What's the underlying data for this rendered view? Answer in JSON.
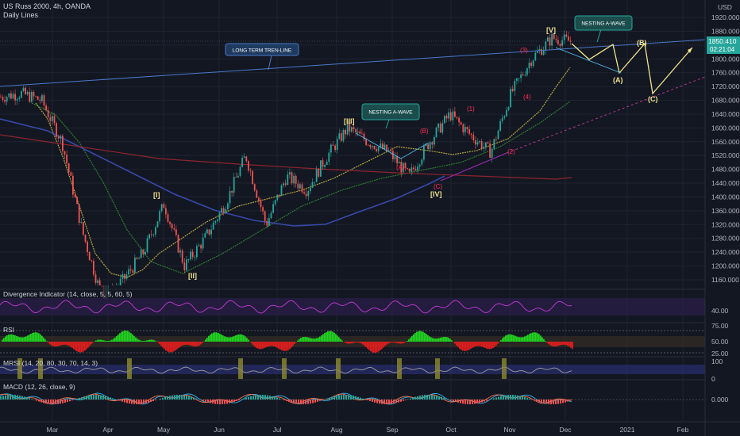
{
  "header": {
    "symbol_line": "US Russ 2000, 4h, OANDA",
    "study_line": "Daily Lines"
  },
  "price_axis": {
    "currency": "USD",
    "ticks": [
      "1920.000",
      "1880.000",
      "1840.000",
      "1800.000",
      "1760.000",
      "1720.000",
      "1680.000",
      "1640.000",
      "1600.000",
      "1560.000",
      "1520.000",
      "1480.000",
      "1440.000",
      "1400.000",
      "1360.000",
      "1320.000",
      "1280.000",
      "1240.000",
      "1200.000",
      "1160.000"
    ],
    "last_price": "1850.410",
    "countdown": "02:21:04"
  },
  "time_axis": {
    "labels": [
      "Mar",
      "Apr",
      "May",
      "Jun",
      "Jul",
      "Aug",
      "Sep",
      "Oct",
      "Nov",
      "Dec",
      "2021",
      "Feb"
    ]
  },
  "annotations": {
    "long_term_trendline": "LONG TERM TREN-LINE",
    "nesting_a_wave_1": "NESTING A-WAVE",
    "nesting_a_wave_2": "NESTING A-WAVE",
    "waves_major": [
      "[I]",
      "[II]",
      "[III]",
      "[IV]",
      "[V]"
    ],
    "waves_minor": [
      "(A)",
      "(B)",
      "(C)",
      "(1)",
      "(2)",
      "(3)",
      "(4)"
    ],
    "projection_waves": [
      "(A)",
      "(B)",
      "(C)"
    ]
  },
  "panes": {
    "divergence": {
      "title": "Divergence Indicator (14, close, 5, 5, 60, 5)",
      "ticks": [
        "40.00"
      ]
    },
    "rsi": {
      "title": "RSI",
      "ticks": [
        "75.00",
        "50.00",
        "25.00"
      ]
    },
    "mrsi": {
      "title": "MRSI (14, 20, 80, 30, 70, 14, 3)",
      "ticks": [
        "100",
        "0"
      ]
    },
    "macd": {
      "title": "MACD (12, 26, close, 9)",
      "ticks": [
        "0.000"
      ]
    }
  },
  "colors": {
    "background": "#131722",
    "candle_up": "#26a69a",
    "candle_down": "#ef5350",
    "trendline": "#2962ff",
    "wave_label": "#f0e38e",
    "price_tag": "#26a69a"
  },
  "chart_data": {
    "type": "candlestick",
    "symbol": "US Russ 2000",
    "interval": "4h",
    "ylim": [
      1120,
      1960
    ],
    "x": [
      "Feb",
      "Mar",
      "Apr",
      "May",
      "Jun",
      "Jul",
      "Aug",
      "Sep",
      "Oct",
      "Nov",
      "Dec",
      "2021",
      "Feb"
    ],
    "close_path": [
      [
        "Feb",
        1690
      ],
      [
        "Feb",
        1700
      ],
      [
        "Feb",
        1680
      ],
      [
        "Mar",
        1560
      ],
      [
        "Mar",
        1300
      ],
      [
        "Mar",
        1100
      ],
      [
        "Apr",
        1160
      ],
      [
        "Apr",
        1240
      ],
      [
        "May",
        1380
      ],
      [
        "May",
        1200
      ],
      [
        "May",
        1280
      ],
      [
        "Jun",
        1380
      ],
      [
        "Jun",
        1520
      ],
      [
        "Jun",
        1320
      ],
      [
        "Jul",
        1460
      ],
      [
        "Jul",
        1420
      ],
      [
        "Aug",
        1520
      ],
      [
        "Aug",
        1600
      ],
      [
        "Sep",
        1560
      ],
      [
        "Sep",
        1530
      ],
      [
        "Sep",
        1460
      ],
      [
        "Oct",
        1560
      ],
      [
        "Oct",
        1640
      ],
      [
        "Oct",
        1580
      ],
      [
        "Nov",
        1530
      ],
      [
        "Nov",
        1700
      ],
      [
        "Nov",
        1800
      ],
      [
        "Dec",
        1860
      ],
      [
        "Dec",
        1850
      ]
    ],
    "last_price": 1850.41,
    "trendline_label": "LONG TERM TREN-LINE"
  }
}
